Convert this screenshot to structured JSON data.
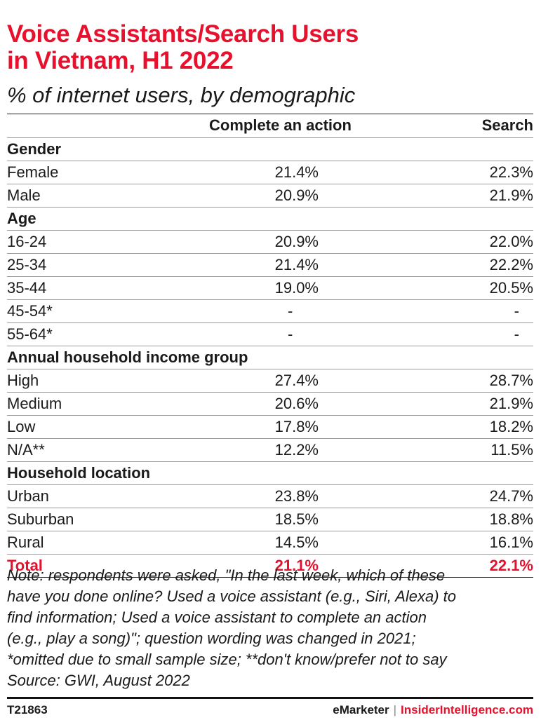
{
  "header": {
    "title_line1": "Voice Assistants/Search Users",
    "title_line2": "in Vietnam, H1 2022",
    "subtitle": "% of internet users, by demographic"
  },
  "chart_data": {
    "type": "table",
    "columns": [
      "",
      "Complete an action",
      "Search"
    ],
    "rows": [
      {
        "kind": "section",
        "label": "Gender"
      },
      {
        "kind": "data",
        "label": "Female",
        "complete": "21.4%",
        "search": "22.3%"
      },
      {
        "kind": "data",
        "label": "Male",
        "complete": "20.9%",
        "search": "21.9%"
      },
      {
        "kind": "section",
        "label": "Age"
      },
      {
        "kind": "data",
        "label": "16-24",
        "complete": "20.9%",
        "search": "22.0%"
      },
      {
        "kind": "data",
        "label": "25-34",
        "complete": "21.4%",
        "search": "22.2%"
      },
      {
        "kind": "data",
        "label": "35-44",
        "complete": "19.0%",
        "search": "20.5%"
      },
      {
        "kind": "dash",
        "label": "45-54*",
        "complete": "-",
        "search": "-"
      },
      {
        "kind": "dash",
        "label": "55-64*",
        "complete": "-",
        "search": "-"
      },
      {
        "kind": "section",
        "label": "Annual household income group"
      },
      {
        "kind": "data",
        "label": "High",
        "complete": "27.4%",
        "search": "28.7%"
      },
      {
        "kind": "data",
        "label": "Medium",
        "complete": "20.6%",
        "search": "21.9%"
      },
      {
        "kind": "data",
        "label": "Low",
        "complete": "17.8%",
        "search": "18.2%"
      },
      {
        "kind": "data",
        "label": "N/A**",
        "complete": "12.2%",
        "search": "11.5%"
      },
      {
        "kind": "section",
        "label": "Household location"
      },
      {
        "kind": "data",
        "label": "Urban",
        "complete": "23.8%",
        "search": "24.7%"
      },
      {
        "kind": "data",
        "label": "Suburban",
        "complete": "18.5%",
        "search": "18.8%"
      },
      {
        "kind": "data",
        "label": "Rural",
        "complete": "14.5%",
        "search": "16.1%"
      },
      {
        "kind": "total",
        "label": "Total",
        "complete": "21.1%",
        "search": "22.1%"
      }
    ]
  },
  "note": {
    "line1": "Note: respondents were asked, \"In the last week, which of these",
    "line2": "have you done online? Used a voice assistant (e.g., Siri, Alexa) to",
    "line3": "find information; Used a voice assistant to complete an action",
    "line4": "(e.g., play a song)\"; question wording was changed in 2021;",
    "line5": "*omitted due to small sample size; **don't know/prefer not to say",
    "line6": "Source: GWI, August 2022"
  },
  "footer": {
    "code": "T21863",
    "brand": "eMarketer",
    "separator": "|",
    "brand2": "InsiderIntelligence.com"
  },
  "colors": {
    "accent": "#e8112d",
    "text": "#1a1a1a",
    "rule": "#9a9a9a"
  }
}
